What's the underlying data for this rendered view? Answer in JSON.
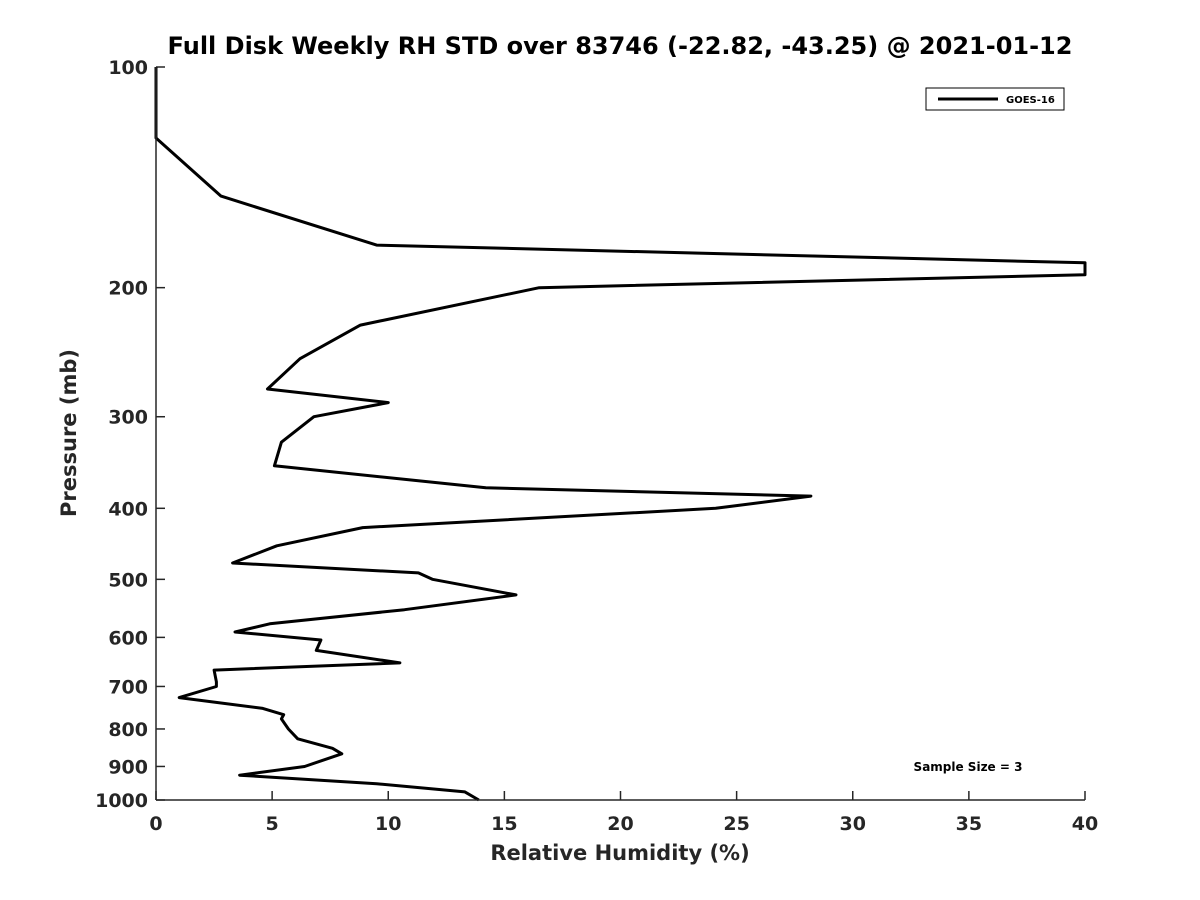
{
  "chart_data": {
    "type": "line",
    "title": "Full Disk Weekly RH STD over 83746 (-22.82, -43.25) @ 2021-01-12",
    "xlabel": "Relative Humidity (%)",
    "ylabel": "Pressure (mb)",
    "xlim": [
      0,
      40
    ],
    "ylim": [
      1000,
      100
    ],
    "y_scale": "log",
    "y_reversed": true,
    "grid": false,
    "legend_position": "top-right",
    "x_ticks": [
      0,
      5,
      10,
      15,
      20,
      25,
      30,
      35,
      40
    ],
    "y_ticks": [
      100,
      200,
      300,
      400,
      500,
      600,
      700,
      800,
      900,
      1000
    ],
    "series": [
      {
        "name": "GOES-16",
        "color": "#000000",
        "points": [
          [
            0,
            100
          ],
          [
            0,
            125
          ],
          [
            2.8,
            150
          ],
          [
            9.5,
            175
          ],
          [
            40,
            185
          ],
          [
            40,
            192
          ],
          [
            16.5,
            200
          ],
          [
            8.8,
            225
          ],
          [
            6.2,
            250
          ],
          [
            4.8,
            275
          ],
          [
            10,
            287
          ],
          [
            6.8,
            300
          ],
          [
            5.4,
            325
          ],
          [
            5.1,
            350
          ],
          [
            14.2,
            375
          ],
          [
            28.2,
            385
          ],
          [
            24.1,
            400
          ],
          [
            8.9,
            425
          ],
          [
            5.2,
            450
          ],
          [
            3.3,
            475
          ],
          [
            11.3,
            490
          ],
          [
            11.9,
            500
          ],
          [
            15.5,
            525
          ],
          [
            10.7,
            550
          ],
          [
            4.9,
            575
          ],
          [
            3.4,
            590
          ],
          [
            7.1,
            605
          ],
          [
            6.9,
            625
          ],
          [
            10.5,
            650
          ],
          [
            2.5,
            665
          ],
          [
            2.6,
            690
          ],
          [
            2.6,
            700
          ],
          [
            1.0,
            725
          ],
          [
            4.6,
            750
          ],
          [
            5.5,
            765
          ],
          [
            5.4,
            775
          ],
          [
            5.7,
            800
          ],
          [
            6.1,
            825
          ],
          [
            7.6,
            850
          ],
          [
            8.0,
            865
          ],
          [
            6.4,
            900
          ],
          [
            3.6,
            925
          ],
          [
            9.5,
            950
          ],
          [
            13.3,
            975
          ],
          [
            13.9,
            1000
          ]
        ]
      }
    ],
    "annotations": [
      "Sample Size = 3"
    ]
  }
}
